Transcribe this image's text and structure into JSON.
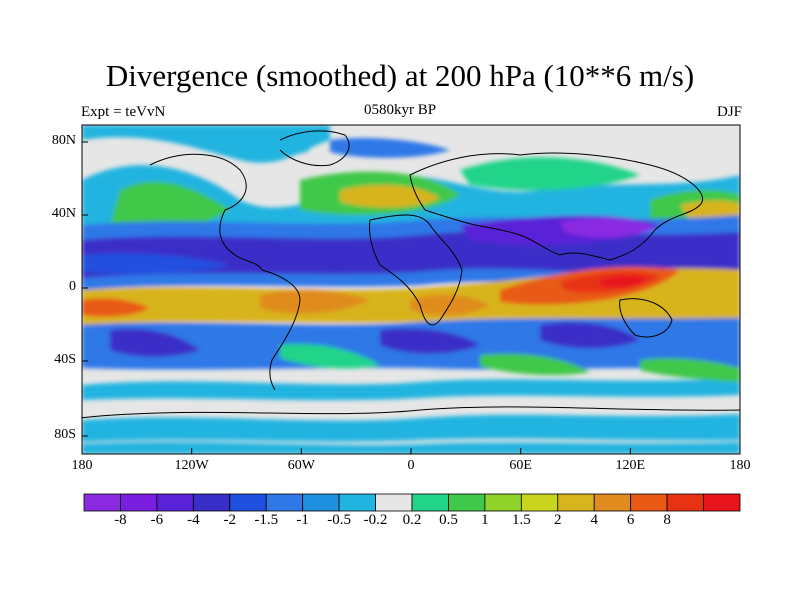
{
  "title": "Divergence (smoothed) at 200 hPa (10**6 m/s)",
  "left_subtitle": "Expt = teVvN",
  "center_subtitle": "0580kyr BP",
  "right_subtitle": "DJF",
  "lat_ticks": [
    "80N",
    "40N",
    "0",
    "40S",
    "80S"
  ],
  "lon_ticks": [
    "180",
    "120W",
    "60W",
    "0",
    "60E",
    "120E",
    "180"
  ],
  "colorbar": {
    "colors": [
      "#8a2be2",
      "#7a1fe0",
      "#5a22d8",
      "#3a2ec8",
      "#2050e0",
      "#2f78e8",
      "#1e90e0",
      "#22b4e0",
      "#e6e6e6",
      "#22d48a",
      "#40c84a",
      "#8ed22a",
      "#c8d41e",
      "#d8b41e",
      "#e08c1e",
      "#e85a14",
      "#e83214",
      "#e8141e"
    ],
    "labels": [
      "-8",
      "-6",
      "-4",
      "-2",
      "-1.5",
      "-1",
      "-0.5",
      "-0.2",
      "0.2",
      "0.5",
      "1",
      "1.5",
      "2",
      "4",
      "6",
      "8"
    ]
  }
}
